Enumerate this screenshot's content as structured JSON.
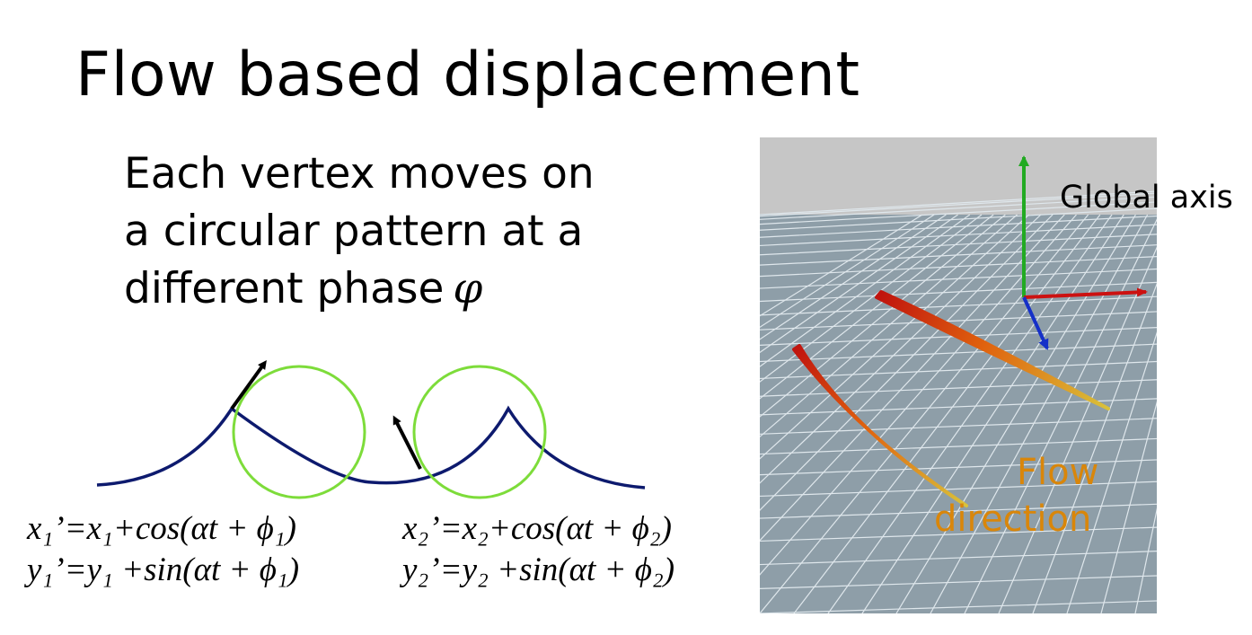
{
  "title": "Flow based displacement",
  "bullet": {
    "lines": [
      "Each vertex moves on",
      "a circular pattern at a",
      "different phase"
    ],
    "symbol": "φ"
  },
  "equations": {
    "eq1_x": "x₁’=x₁+cos(αt + ϕ₁)",
    "eq1_y": "y₁’=y₁ +sin(αt + ϕ₁)",
    "eq2_x": "x₂’=x₂+cos(αt + ϕ₂)",
    "eq2_y": "y₂’=y₂ +sin(αt + ϕ₂)"
  },
  "render": {
    "axis_label": "Global axis",
    "flow_label": [
      "Flow",
      "direction"
    ]
  },
  "colors": {
    "curve": "#0d1a6e",
    "circle": "#7ddc3a",
    "axis_x": "#cc1111",
    "axis_y": "#22aa22",
    "axis_z": "#1530c8",
    "flow_text": "#d9860a",
    "ground": "#8e9ea8",
    "sky": "#c6c6c6"
  }
}
